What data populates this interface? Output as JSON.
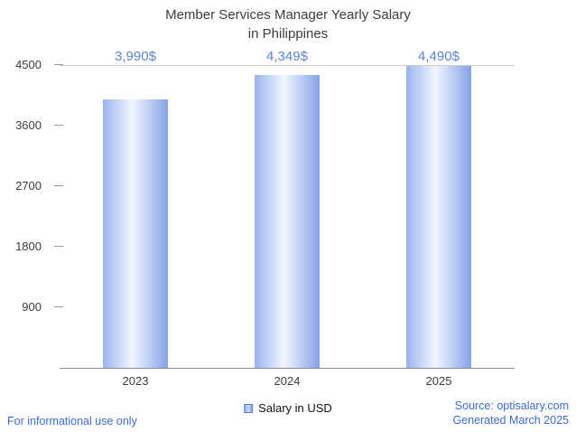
{
  "chart": {
    "title_lines": [
      "Member Services Manager Yearly Salary",
      "in Philippines"
    ],
    "legend": "Salary in USD"
  },
  "footer": {
    "disclaimer": "For informational use only",
    "source": "Source: optisalary.com",
    "generated": "Generated March 2025"
  },
  "colors": {
    "bar_edge_dark": "#84a2e8",
    "bar_edge_light": "#9ab4ee",
    "bar_center": "#f2f6fe",
    "value_label": "#5b82dc",
    "link_text": "#3b6bd5",
    "axis_line": "#8a8a8a",
    "top_gridline": "#cccccc",
    "title_text": "#3d3d3d"
  },
  "chart_data": {
    "type": "bar",
    "title": "Member Services Manager Yearly Salary in Philippines",
    "categories": [
      "2023",
      "2024",
      "2025"
    ],
    "series": [
      {
        "name": "Salary in USD",
        "values": [
          3990,
          4349,
          4490
        ]
      }
    ],
    "value_labels": [
      "3,990$",
      "4,349$",
      "4,490$"
    ],
    "xlabel": "",
    "ylabel": "",
    "ylim": [
      0,
      4500
    ],
    "yticks": [
      900,
      1800,
      2700,
      3600,
      4500
    ],
    "grid": "single top gridline at 4500",
    "legend_entries": [
      "Salary in USD"
    ],
    "legend_position": "bottom-center"
  }
}
